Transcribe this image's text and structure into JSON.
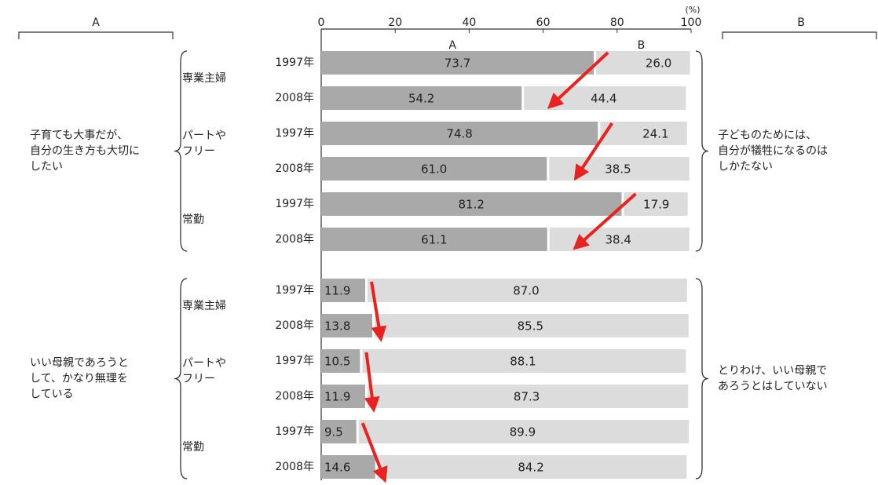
{
  "chart_data": {
    "type": "bar",
    "stacked": true,
    "orientation": "horizontal",
    "x_axis": {
      "ticks": [
        "0",
        "20",
        "40",
        "60",
        "80",
        "100"
      ],
      "unit": "(%)",
      "range": [
        0,
        100
      ]
    },
    "series_labels": [
      "A",
      "B"
    ],
    "column_headers": {
      "left": "A",
      "right": "B"
    },
    "colors": {
      "A": "#a9a9a9",
      "B": "#dcdcdc",
      "arrow": "#e8231f"
    },
    "groups": [
      {
        "left_text": [
          "子育ても大事だが、",
          "自分の生き方も大切に",
          "したい"
        ],
        "right_text": [
          "子どものためには、",
          "自分が犠牲になるのは",
          "しかたない"
        ],
        "categories": [
          {
            "label": [
              "専業主婦"
            ],
            "rows": [
              {
                "year": "1997年",
                "a": 73.7,
                "b": 26.0
              },
              {
                "year": "2008年",
                "a": 54.2,
                "b": 44.4
              }
            ]
          },
          {
            "label": [
              "パートや",
              "フリー"
            ],
            "rows": [
              {
                "year": "1997年",
                "a": 74.8,
                "b": 24.1
              },
              {
                "year": "2008年",
                "a": 61.0,
                "b": 38.5
              }
            ]
          },
          {
            "label": [
              "常勤"
            ],
            "rows": [
              {
                "year": "1997年",
                "a": 81.2,
                "b": 17.9
              },
              {
                "year": "2008年",
                "a": 61.1,
                "b": 38.4
              }
            ]
          }
        ]
      },
      {
        "left_text": [
          "いい母親であろうと",
          "して、かなり無理を",
          "している"
        ],
        "right_text": [
          "とりわけ、いい母親で",
          "あろうとはしていない"
        ],
        "categories": [
          {
            "label": [
              "専業主婦"
            ],
            "rows": [
              {
                "year": "1997年",
                "a": 11.9,
                "b": 87.0
              },
              {
                "year": "2008年",
                "a": 13.8,
                "b": 85.5
              }
            ]
          },
          {
            "label": [
              "パートや",
              "フリー"
            ],
            "rows": [
              {
                "year": "1997年",
                "a": 10.5,
                "b": 88.1
              },
              {
                "year": "2008年",
                "a": 11.9,
                "b": 87.3
              }
            ]
          },
          {
            "label": [
              "常勤"
            ],
            "rows": [
              {
                "year": "1997年",
                "a": 9.5,
                "b": 89.9
              },
              {
                "year": "2008年",
                "a": 14.6,
                "b": 84.2
              }
            ]
          }
        ]
      }
    ]
  }
}
